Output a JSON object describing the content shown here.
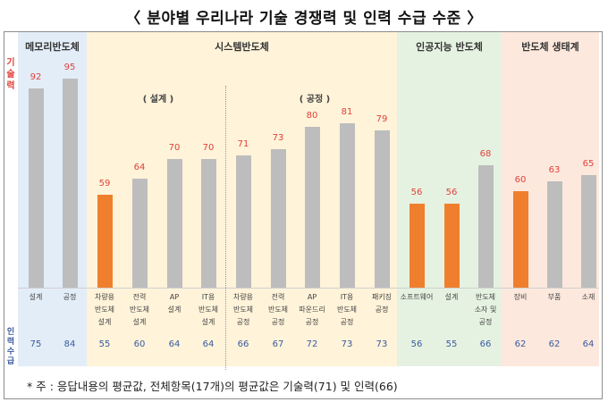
{
  "title": "〈 분야별 우리나라 기술 경쟁력 및 인력 수급 수준 〉",
  "side_labels": {
    "tech": "기\n술\n력",
    "manpower": "인\n력\n수\n급"
  },
  "panels": [
    {
      "name": "메모리반도체",
      "bg": "#e3edf8"
    },
    {
      "name": "시스템반도체",
      "bg": "#fff3d9",
      "subs": [
        "( 설계 )",
        "( 공정 )"
      ]
    },
    {
      "name": "인공지능 반도체",
      "bg": "#e6f2e1"
    },
    {
      "name": "반도체 생태계",
      "bg": "#fde8dd"
    }
  ],
  "colors": {
    "highlight": "#f07f2d",
    "normal": "#bdbdbd",
    "tech_value": "#e0413a",
    "manpower_value": "#3a5aa0"
  },
  "note": "* 주 : 응답내용의 평균값, 전체항목(17개)의 평균값은 기술력(71) 및 인력(66)",
  "chart_data": {
    "type": "bar",
    "title": "분야별 우리나라 기술 경쟁력 및 인력 수급 수준",
    "categories": [
      "설계",
      "공정",
      "차량용\n반도체\n설계",
      "전력\n반도체\n설계",
      "AP\n설계",
      "IT용\n반도체\n설계",
      "차량용\n반도체\n공정",
      "전력\n반도체\n공정",
      "AP\n파운드리\n공정",
      "IT용\n반도체\n공정",
      "패키징\n공정",
      "소프트웨어",
      "설계",
      "반도체\n소자 및\n공정",
      "장비",
      "부품",
      "소재"
    ],
    "groups": [
      "메모리반도체",
      "메모리반도체",
      "시스템반도체",
      "시스템반도체",
      "시스템반도체",
      "시스템반도체",
      "시스템반도체",
      "시스템반도체",
      "시스템반도체",
      "시스템반도체",
      "시스템반도체",
      "인공지능 반도체",
      "인공지능 반도체",
      "인공지능 반도체",
      "반도체 생태계",
      "반도체 생태계",
      "반도체 생태계"
    ],
    "series": [
      {
        "name": "기술력",
        "values": [
          92,
          95,
          59,
          64,
          70,
          70,
          71,
          73,
          80,
          81,
          79,
          56,
          56,
          68,
          60,
          63,
          65
        ]
      },
      {
        "name": "인력수급",
        "values": [
          75,
          84,
          55,
          60,
          64,
          64,
          66,
          67,
          72,
          73,
          73,
          56,
          55,
          66,
          62,
          62,
          64
        ]
      }
    ],
    "highlight": [
      false,
      false,
      true,
      false,
      false,
      false,
      false,
      false,
      false,
      false,
      false,
      true,
      true,
      false,
      true,
      false,
      false
    ],
    "ylim": [
      0,
      100
    ],
    "grid": false
  }
}
